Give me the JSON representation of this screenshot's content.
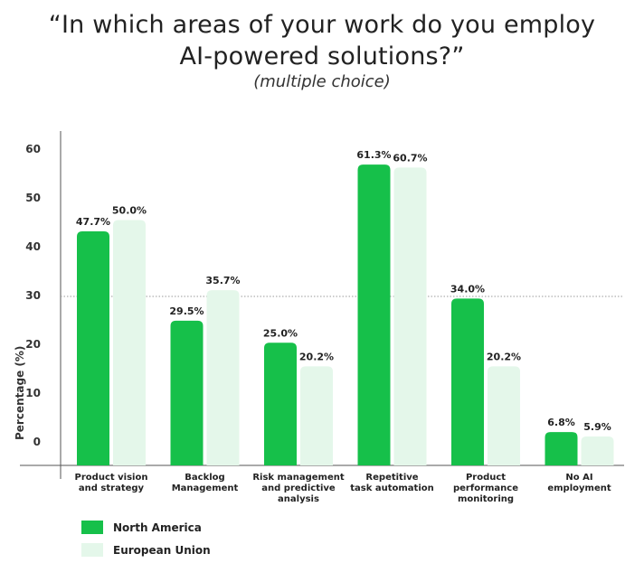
{
  "header": {
    "title_line1": "“In which areas of your work do you employ",
    "title_line2": "AI-powered solutions?”",
    "subtitle": "(multiple choice)"
  },
  "chart_data": {
    "type": "bar",
    "title": "“In which areas of your work do you employ AI-powered solutions?”",
    "subtitle": "(multiple choice)",
    "xlabel": "",
    "ylabel": "Percentage (%)",
    "yticks": [
      "0",
      "10",
      "20",
      "30",
      "40",
      "50",
      "60"
    ],
    "ylim": [
      0,
      62
    ],
    "reference_line": 30,
    "categories": [
      [
        "Product vision",
        "and strategy"
      ],
      [
        "Backlog",
        "Management"
      ],
      [
        "Risk management",
        "and predictive",
        "analysis"
      ],
      [
        "Repetitive",
        "task automation"
      ],
      [
        "Product",
        "performance",
        "monitoring"
      ],
      [
        "No AI",
        "employment"
      ]
    ],
    "series": [
      {
        "name": "North America",
        "color": "#16c04a",
        "values": [
          47.7,
          29.5,
          25.0,
          61.3,
          34.0,
          6.8
        ],
        "labels": [
          "47.7%",
          "29.5%",
          "25.0%",
          "61.3%",
          "34.0%",
          "6.8%"
        ]
      },
      {
        "name": "European Union",
        "color": "#e4f7ea",
        "values": [
          50.0,
          35.7,
          20.2,
          60.7,
          20.2,
          5.9
        ],
        "labels": [
          "50.0%",
          "35.7%",
          "20.2%",
          "60.7%",
          "20.2%",
          "5.9%"
        ]
      }
    ],
    "legend_position": "bottom-left"
  }
}
